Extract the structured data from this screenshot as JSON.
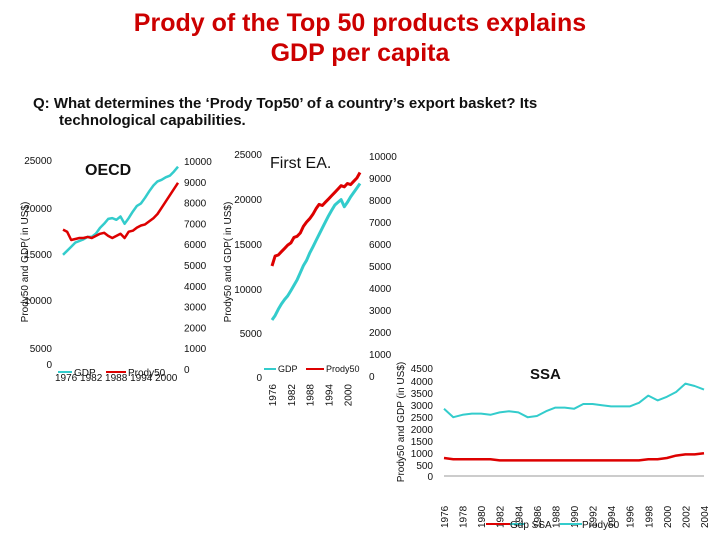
{
  "slide": {
    "title_line1": "Prody of the Top 50 products explains",
    "title_line2": "GDP per capita",
    "question_line1": "Q: What determines the ‘Prody Top50’ of a country’s export basket? Its",
    "question_line2": "technological capabilities."
  },
  "colors": {
    "gdp": "#33cccc",
    "prody": "#dd0000",
    "title": "#cc0000"
  },
  "chart_data": [
    {
      "id": "oecd",
      "type": "line",
      "title": "OECD",
      "ylabel": "Prody50 and GDP( in US$)",
      "y_left_ticks": [
        "25000",
        "20000",
        "15000",
        "10000",
        "5000",
        "0"
      ],
      "y_right_ticks": [
        "10000",
        "9000",
        "8000",
        "7000",
        "6000",
        "5000",
        "4000",
        "3000",
        "2000",
        "1000",
        "0"
      ],
      "x_tick_text": "1976 1982 1988 1994 2000",
      "ylim_left": [
        0,
        25000
      ],
      "ylim_right": [
        0,
        10000
      ],
      "xlim": [
        1976,
        2004
      ],
      "legend": [
        "GDP",
        "Prody50"
      ],
      "legend_position": "bottom",
      "series": [
        {
          "name": "GDP",
          "axis": "left",
          "x": [
            1976,
            1977,
            1978,
            1979,
            1980,
            1981,
            1982,
            1983,
            1984,
            1985,
            1986,
            1987,
            1988,
            1989,
            1990,
            1991,
            1992,
            1993,
            1994,
            1995,
            1996,
            1997,
            1998,
            1999,
            2000,
            2001,
            2002,
            2003,
            2004
          ],
          "y": [
            13500,
            14000,
            14500,
            15000,
            15200,
            15400,
            15700,
            15700,
            16100,
            16800,
            17300,
            17900,
            18000,
            17800,
            18200,
            17300,
            18000,
            18800,
            19500,
            19800,
            20500,
            21300,
            22000,
            22500,
            22700,
            23000,
            23200,
            23700,
            24300
          ]
        },
        {
          "name": "Prody50",
          "axis": "right",
          "x": [
            1976,
            1977,
            1978,
            1979,
            1980,
            1981,
            1982,
            1983,
            1984,
            1985,
            1986,
            1987,
            1988,
            1989,
            1990,
            1991,
            1992,
            1993,
            1994,
            1995,
            1996,
            1997,
            1998,
            1999,
            2000,
            2001,
            2002,
            2003,
            2004
          ],
          "y": [
            6700,
            6600,
            6200,
            6250,
            6300,
            6300,
            6350,
            6300,
            6400,
            6500,
            6550,
            6400,
            6300,
            6400,
            6500,
            6300,
            6600,
            6650,
            6800,
            6900,
            6950,
            7100,
            7250,
            7450,
            7750,
            8050,
            8350,
            8650,
            8950
          ]
        }
      ]
    },
    {
      "id": "first-ea",
      "type": "line",
      "title": "First EA.",
      "ylabel": "Prody50 and GDP( in US$)",
      "y_left_ticks": [
        "25000",
        "20000",
        "15000",
        "10000",
        "5000",
        "0"
      ],
      "y_right_ticks": [
        "10000",
        "9000",
        "8000",
        "7000",
        "6000",
        "5000",
        "4000",
        "3000",
        "2000",
        "1000",
        "0"
      ],
      "x_ticks": [
        "1976",
        "1982",
        "1988",
        "1994",
        "2000"
      ],
      "ylim_left": [
        0,
        25000
      ],
      "ylim_right": [
        0,
        10000
      ],
      "xlim": [
        1976,
        2004
      ],
      "legend": [
        "GDP",
        "Prody50"
      ],
      "legend_position": "bottom",
      "series": [
        {
          "name": "GDP",
          "axis": "left",
          "x": [
            1976,
            1977,
            1978,
            1979,
            1980,
            1981,
            1982,
            1983,
            1984,
            1985,
            1986,
            1987,
            1988,
            1989,
            1990,
            1991,
            1992,
            1993,
            1994,
            1995,
            1996,
            1997,
            1998,
            1999,
            2000,
            2001,
            2002,
            2003,
            2004
          ],
          "y": [
            6500,
            7000,
            7700,
            8300,
            8800,
            9200,
            9800,
            10400,
            11000,
            11800,
            12600,
            13200,
            14000,
            14700,
            15400,
            16100,
            16800,
            17500,
            18200,
            18800,
            19400,
            19700,
            20000,
            19200,
            19700,
            20300,
            20800,
            21300,
            21800
          ]
        },
        {
          "name": "Prody50",
          "axis": "right",
          "x": [
            1976,
            1977,
            1978,
            1979,
            1980,
            1981,
            1982,
            1983,
            1984,
            1985,
            1986,
            1987,
            1988,
            1989,
            1990,
            1991,
            1992,
            1993,
            1994,
            1995,
            1996,
            1997,
            1998,
            1999,
            2000,
            2001,
            2002,
            2003,
            2004
          ],
          "y": [
            5000,
            5450,
            5500,
            5650,
            5800,
            5950,
            6050,
            6300,
            6350,
            6500,
            6800,
            7000,
            7150,
            7350,
            7600,
            7800,
            7750,
            7900,
            8050,
            8200,
            8350,
            8500,
            8650,
            8600,
            8750,
            8700,
            8850,
            9000,
            9250
          ]
        }
      ]
    },
    {
      "id": "ssa",
      "type": "line",
      "title": "SSA",
      "ylabel": "Prody50 and GDP (in US$)",
      "y_ticks": [
        "4500",
        "4000",
        "3500",
        "3000",
        "2500",
        "2000",
        "1500",
        "1000",
        "500",
        "0"
      ],
      "x_ticks": [
        "1976",
        "1978",
        "1980",
        "1982",
        "1984",
        "1986",
        "1988",
        "1990",
        "1992",
        "1994",
        "1996",
        "1998",
        "2000",
        "2002",
        "2004"
      ],
      "ylim": [
        0,
        4500
      ],
      "xlim": [
        1976,
        2004
      ],
      "legend": [
        "Gdp SSA",
        "Prody50"
      ],
      "legend_position": "bottom",
      "series": [
        {
          "name": "Gdp SSA",
          "x": [
            1976,
            1977,
            1978,
            1979,
            1980,
            1981,
            1982,
            1983,
            1984,
            1985,
            1986,
            1987,
            1988,
            1989,
            1990,
            1991,
            1992,
            1993,
            1994,
            1995,
            1996,
            1997,
            1998,
            1999,
            2000,
            2001,
            2002,
            2003,
            2004
          ],
          "y": [
            2800,
            2450,
            2550,
            2600,
            2600,
            2550,
            2650,
            2700,
            2650,
            2450,
            2500,
            2700,
            2850,
            2850,
            2800,
            3000,
            3000,
            2950,
            2900,
            2900,
            2900,
            3050,
            3350,
            3150,
            3300,
            3500,
            3850,
            3750,
            3600
          ]
        },
        {
          "name": "Prody50",
          "x": [
            1976,
            1977,
            1978,
            1979,
            1980,
            1981,
            1982,
            1983,
            1984,
            1985,
            1986,
            1987,
            1988,
            1989,
            1990,
            1991,
            1992,
            1993,
            1994,
            1995,
            1996,
            1997,
            1998,
            1999,
            2000,
            2001,
            2002,
            2003,
            2004
          ],
          "y": [
            750,
            700,
            700,
            700,
            700,
            700,
            650,
            650,
            650,
            650,
            650,
            650,
            650,
            650,
            650,
            650,
            650,
            650,
            650,
            650,
            650,
            650,
            700,
            700,
            750,
            850,
            900,
            900,
            950
          ]
        }
      ]
    }
  ]
}
